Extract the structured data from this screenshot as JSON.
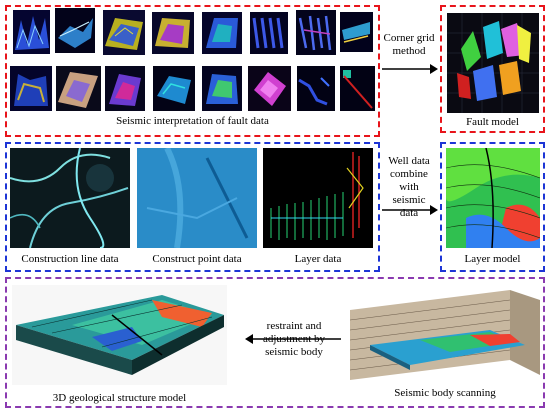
{
  "seismic_section": {
    "caption": "Seismic interpretation of fault data",
    "thumbnails": [
      "fault-slice-1",
      "fault-slice-2",
      "fault-slice-3",
      "fault-slice-4",
      "fault-slice-5",
      "fault-slice-6",
      "fault-slice-7",
      "fault-slice-8",
      "fault-slice-9",
      "fault-slice-10",
      "fault-slice-11",
      "fault-slice-12",
      "fault-slice-13",
      "fault-slice-14",
      "fault-slice-15",
      "fault-slice-16"
    ]
  },
  "fault_model": {
    "caption": "Fault model"
  },
  "arrow_corner_grid": {
    "label": "Corner grid method"
  },
  "layer_inputs": {
    "construction_line": "Construction line data",
    "construct_point": "Construct point data",
    "layer_data": "Layer data"
  },
  "arrow_well": {
    "label": "Well data combine with seismic data"
  },
  "layer_model": {
    "caption": "Layer model"
  },
  "arrow_restraint": {
    "label": "restraint and adjustment by seismic body"
  },
  "structure_model": {
    "caption": "3D geological structure model"
  },
  "seismic_body": {
    "caption": "Seismic body scanning"
  },
  "colors": {
    "red_dash": "#e8141b",
    "blue_dash": "#1d35d6",
    "purple_dash": "#8a3ab0"
  }
}
